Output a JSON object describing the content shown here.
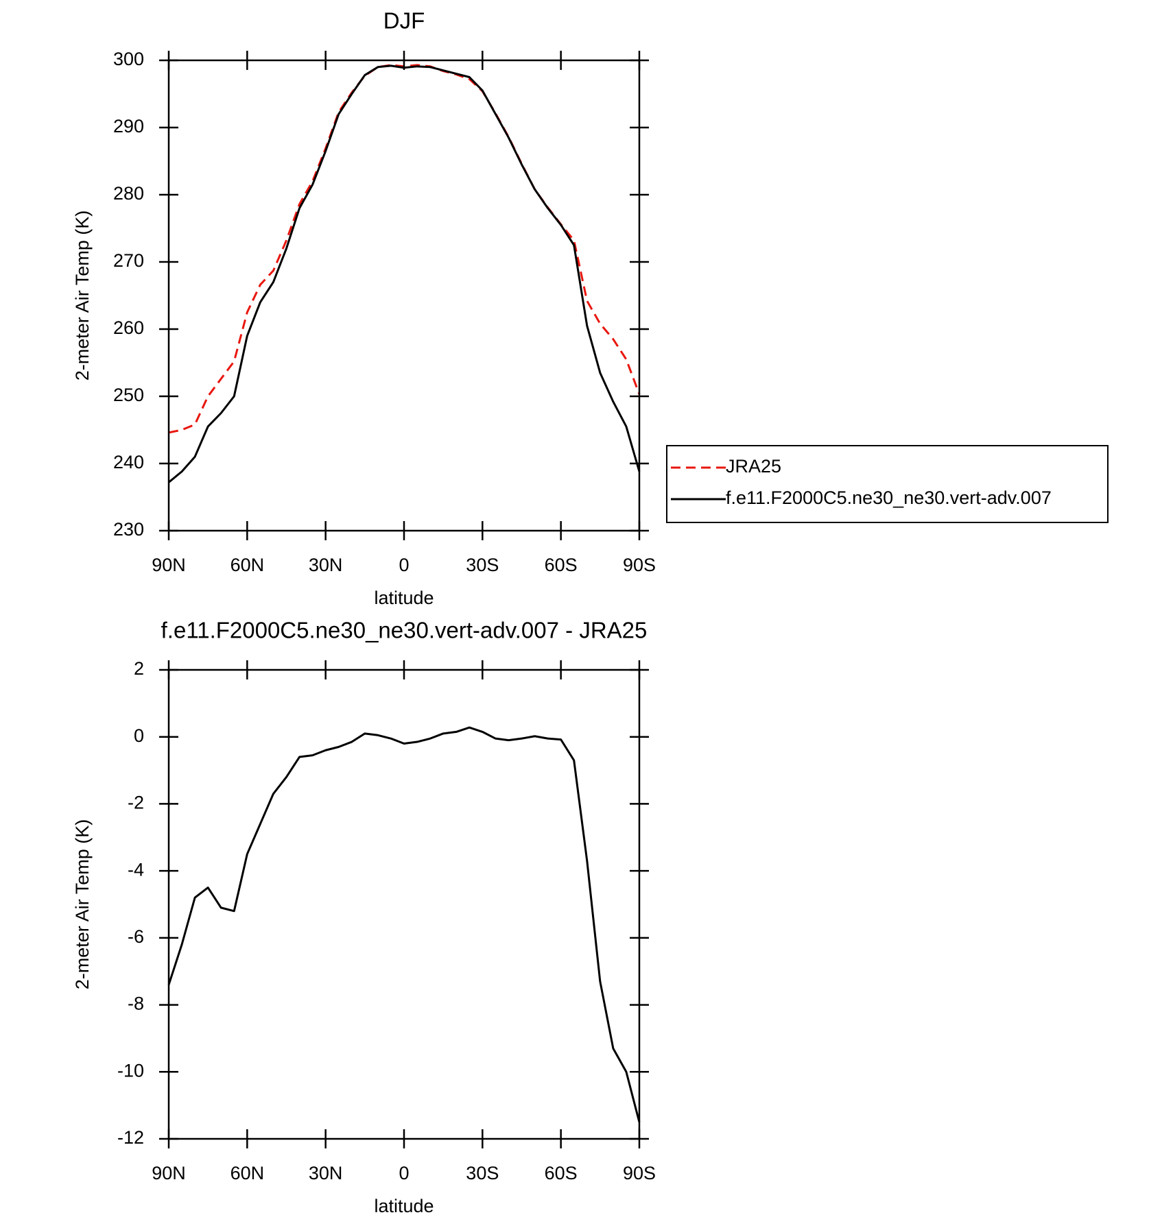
{
  "chart_data": [
    {
      "type": "line",
      "title": "DJF",
      "x_label": "latitude",
      "y_label": "2-meter Air Temp (K)",
      "x": [
        90,
        85,
        80,
        75,
        70,
        65,
        60,
        55,
        50,
        45,
        40,
        35,
        30,
        25,
        20,
        15,
        10,
        5,
        0,
        -5,
        -10,
        -15,
        -20,
        -25,
        -30,
        -35,
        -40,
        -45,
        -50,
        -55,
        -60,
        -65,
        -70,
        -75,
        -80,
        -85,
        -90
      ],
      "xlim": [
        90,
        -90
      ],
      "xticks": [
        {
          "value": 90,
          "label": "90N"
        },
        {
          "value": 60,
          "label": "60N"
        },
        {
          "value": 30,
          "label": "30N"
        },
        0,
        {
          "value": -30,
          "label": "30S"
        },
        {
          "value": -60,
          "label": "60S"
        },
        {
          "value": -90,
          "label": "90S"
        }
      ],
      "ylim": [
        230,
        300
      ],
      "yticks": [
        230,
        240,
        250,
        260,
        270,
        280,
        290,
        300
      ],
      "legend": "right",
      "series": [
        {
          "name": "JRA25",
          "color": "#e8170f",
          "dash": true,
          "values": [
            244.6,
            245,
            245.8,
            250,
            252.6,
            255.2,
            262.5,
            266.6,
            268.7,
            273.2,
            278.6,
            282,
            286.9,
            292.3,
            295.2,
            297.7,
            299,
            299.3,
            299.1,
            299.3,
            299.1,
            298.4,
            297.9,
            297.2,
            295.4,
            292.1,
            288.6,
            284.6,
            280.8,
            278.1,
            275.6,
            273.2,
            264.2,
            260.8,
            258.5,
            255.5,
            250.3
          ]
        },
        {
          "name": "f.e11.F2000C5.ne30_ne30.vert-adv.007",
          "color": "#000000",
          "dash": false,
          "values": [
            237.2,
            238.8,
            241,
            245.5,
            247.5,
            250,
            259,
            264,
            267,
            272,
            278,
            281.5,
            286.5,
            292,
            295,
            297.8,
            299,
            299.2,
            298.9,
            299.1,
            299,
            298.5,
            298,
            297.5,
            295.5,
            292,
            288.5,
            284.5,
            280.8,
            278,
            275.5,
            272.5,
            260.5,
            253.5,
            249.2,
            245.5,
            238.8
          ]
        }
      ]
    },
    {
      "type": "line",
      "title": "f.e11.F2000C5.ne30_ne30.vert-adv.007 - JRA25",
      "x_label": "latitude",
      "y_label": "2-meter Air Temp (K)",
      "x": [
        90,
        85,
        80,
        75,
        70,
        65,
        60,
        55,
        50,
        45,
        40,
        35,
        30,
        25,
        20,
        15,
        10,
        5,
        0,
        -5,
        -10,
        -15,
        -20,
        -25,
        -30,
        -35,
        -40,
        -45,
        -50,
        -55,
        -60,
        -65,
        -70,
        -75,
        -80,
        -85,
        -90
      ],
      "xlim": [
        90,
        -90
      ],
      "xticks": [
        {
          "value": 90,
          "label": "90N"
        },
        {
          "value": 60,
          "label": "60N"
        },
        {
          "value": 30,
          "label": "30N"
        },
        0,
        {
          "value": -30,
          "label": "30S"
        },
        {
          "value": -60,
          "label": "60S"
        },
        {
          "value": -90,
          "label": "90S"
        }
      ],
      "ylim": [
        -12,
        2
      ],
      "yticks": [
        -12,
        -10,
        -8,
        -6,
        -4,
        -2,
        0,
        2
      ],
      "color": "#000000",
      "values": [
        -7.4,
        -6.2,
        -4.8,
        -4.5,
        -5.1,
        -5.2,
        -3.5,
        -2.6,
        -1.7,
        -1.2,
        -0.6,
        -0.55,
        -0.4,
        -0.3,
        -0.15,
        0.1,
        0.05,
        -0.05,
        -0.2,
        -0.15,
        -0.05,
        0.1,
        0.15,
        0.28,
        0.15,
        -0.05,
        -0.1,
        -0.05,
        0.02,
        -0.05,
        -0.08,
        -0.7,
        -3.7,
        -7.3,
        -9.3,
        -10,
        -11.5
      ]
    }
  ]
}
